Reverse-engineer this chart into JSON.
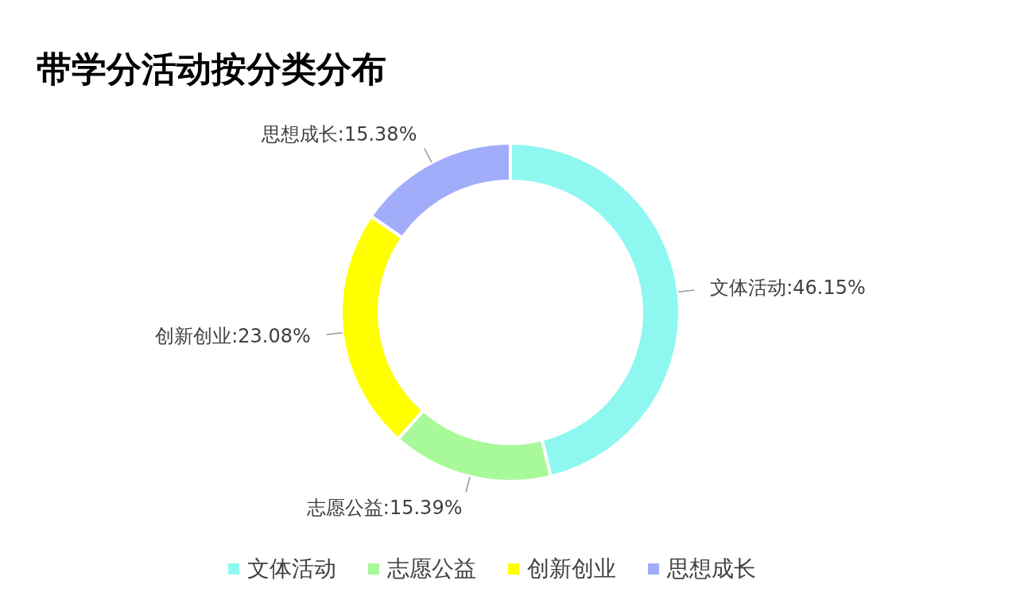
{
  "chart_data": {
    "type": "donut",
    "title": "带学分活动按分类分布",
    "categories": [
      "文体活动",
      "志愿公益",
      "创新创业",
      "思想成长"
    ],
    "values": [
      46.15,
      15.39,
      23.08,
      15.38
    ],
    "colors": [
      "#8ef8f0",
      "#a8f99a",
      "#ffff00",
      "#a1adfa"
    ],
    "value_labels": [
      "文体活动:46.15%",
      "志愿公益:15.39%",
      "创新创业:23.08%",
      "思想成长:15.38%"
    ],
    "legend": "bottom"
  }
}
